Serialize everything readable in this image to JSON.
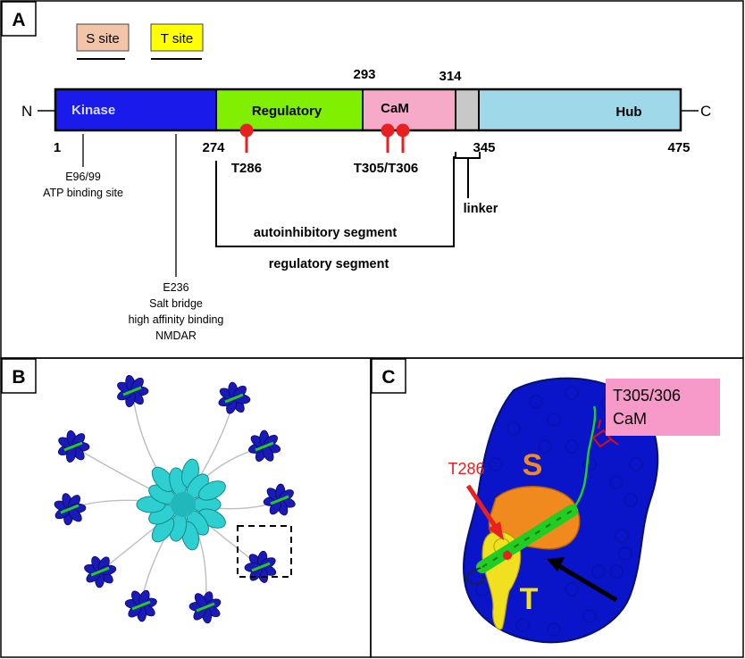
{
  "panel_a": {
    "letter": "A",
    "legend": {
      "s_site": "S site",
      "t_site": "T site",
      "s_color": "#f2c4a8",
      "t_color": "#ffff00"
    },
    "terminus": {
      "n": "N",
      "c": "C"
    },
    "domains": [
      {
        "label": "Kinase",
        "color": "#1a1aeb"
      },
      {
        "label": "Regulatory",
        "color": "#80f000"
      },
      {
        "label": "CaM",
        "color": "#f7a9c8"
      },
      {
        "label": "",
        "color": "#c8c8c8"
      },
      {
        "label": "Hub",
        "color": "#9fd8e8"
      }
    ],
    "numbers": {
      "n1": "1",
      "n274": "274",
      "n293": "293",
      "n314": "314",
      "n345": "345",
      "n475": "475"
    },
    "phospho": {
      "t286": "T286",
      "t305": "T305/T306",
      "color": "#e82020"
    },
    "annotations": {
      "e96_line1": "E96/99",
      "e96_line2": "ATP binding site",
      "e236_line1": "E236",
      "e236_line2": "Salt bridge",
      "e236_line3": "high affinity binding",
      "e236_line4": "NMDAR",
      "linker": "linker",
      "autoinhibitory": "autoinhibitory segment",
      "regulatory": "regulatory segment"
    }
  },
  "panel_b": {
    "letter": "B"
  },
  "panel_c": {
    "letter": "C",
    "callout": {
      "line1": "T305/306",
      "line2": "CaM",
      "color": "#f79ac9"
    },
    "t286": "T286",
    "s_label": "S",
    "t_label": "T",
    "colors": {
      "surface": "#0a14c8",
      "s_site": "#f08a1e",
      "t_site": "#f0e020",
      "helix": "#22cc22"
    }
  }
}
